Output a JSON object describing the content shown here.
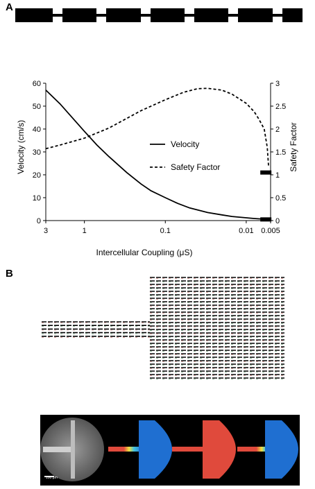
{
  "panels": {
    "a": "A",
    "b": "B"
  },
  "chain": {
    "gap_count": 6
  },
  "chart_data": {
    "type": "line",
    "xlabel": "Intercellular Coupling (μS)",
    "ylabel": "Velocity  (cm/s)",
    "y2label": "Safety Factor",
    "x_scale": "log",
    "x_reversed": true,
    "xlim": [
      3,
      0.005
    ],
    "xticks": [
      3,
      1,
      0.1,
      0.01,
      0.005
    ],
    "xtick_labels": [
      "3",
      "1",
      "0.1",
      "0.01",
      "0.005"
    ],
    "ylim": [
      0,
      60
    ],
    "yticks": [
      0,
      10,
      20,
      30,
      40,
      50,
      60
    ],
    "y2lim": [
      0,
      3
    ],
    "y2ticks": [
      0,
      0.5,
      1,
      1.5,
      2,
      2.5,
      3
    ],
    "y2tick_labels": [
      "0",
      "0.5",
      "1",
      "1.5",
      "2",
      "2.5",
      "3"
    ],
    "legend_position": "center-right",
    "series": [
      {
        "name": "Velocity",
        "axis": "left",
        "style": "solid",
        "x": [
          3,
          2,
          1.5,
          1,
          0.7,
          0.5,
          0.3,
          0.2,
          0.15,
          0.1,
          0.07,
          0.05,
          0.03,
          0.02,
          0.015,
          0.01,
          0.008,
          0.006,
          0.005
        ],
        "y": [
          57,
          51,
          46,
          39,
          33,
          28,
          21,
          16,
          13,
          10,
          7.5,
          5.5,
          3.5,
          2.5,
          1.8,
          1.2,
          0.9,
          0.6,
          0.5
        ]
      },
      {
        "name": "Safety Factor",
        "axis": "right",
        "style": "dashed",
        "x": [
          3,
          2,
          1,
          0.5,
          0.2,
          0.1,
          0.06,
          0.04,
          0.03,
          0.02,
          0.015,
          0.01,
          0.008,
          0.007,
          0.006,
          0.0055,
          0.0053
        ],
        "y": [
          1.57,
          1.65,
          1.8,
          2.02,
          2.4,
          2.64,
          2.8,
          2.88,
          2.89,
          2.85,
          2.76,
          2.56,
          2.38,
          2.22,
          2.0,
          1.6,
          1.2
        ]
      }
    ],
    "markers": [
      {
        "axis": "right",
        "x": 0.0055,
        "y": 1.05
      },
      {
        "axis": "left",
        "x": 0.0055,
        "y": 0.5
      }
    ]
  },
  "grid": {
    "strand_rows": 5,
    "block_rows": 30
  },
  "photo": {
    "scale_label": "100 μm"
  },
  "colors": {
    "black": "#000000",
    "blue": "#1f6fd1",
    "red": "#e04a3c",
    "strand_red": "#c0605a",
    "strand_green": "#4a8a5a"
  }
}
